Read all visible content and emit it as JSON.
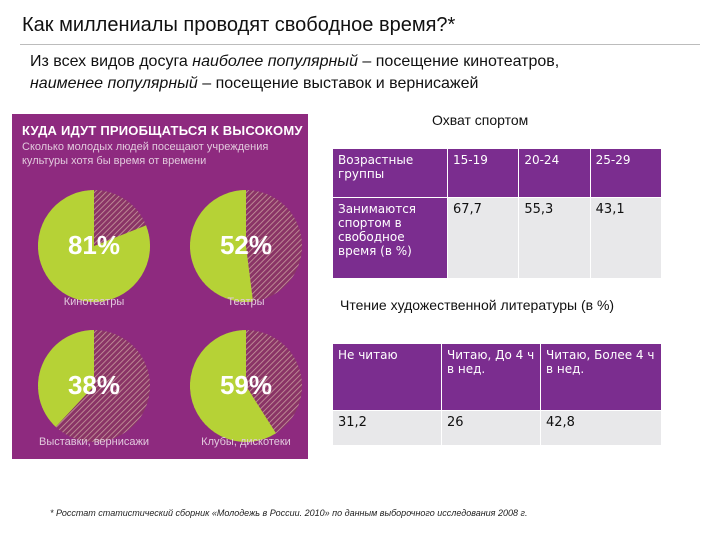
{
  "slide": {
    "title": "Как миллениалы проводят свободное время?*",
    "subtitle_lead": "Из всех видов досуга ",
    "subtitle_most": "наиболее популярный",
    "subtitle_mid": " – посещение кинотеатров,",
    "subtitle_least": "наименее популярный",
    "subtitle_end": " – посещение выставок и вернисажей",
    "footnote": "* Росстат статистический сборник «Молодежь в России. 2010» по данным выборочного исследования 2008 г."
  },
  "infographic": {
    "title": "КУДА ИДУТ ПРИОБЩАТЬСЯ К ВЫСОКОМУ",
    "subtitle": "Сколько молодых людей посещают учреждения культуры хотя бы время от времени",
    "colors": {
      "background": "#8e2a7f",
      "fill": "#b6d236",
      "rest": "#8a3466",
      "stripe": "#c79a9e"
    },
    "items": [
      {
        "value": 81,
        "label": "81%",
        "caption": "Кинотеатры"
      },
      {
        "value": 52,
        "label": "52%",
        "caption": "Театры"
      },
      {
        "value": 38,
        "label": "38%",
        "caption": "Выставки, вернисажи"
      },
      {
        "value": 59,
        "label": "59%",
        "caption": "Клубы, дискотеки"
      }
    ]
  },
  "sports": {
    "heading": "Охват спортом",
    "row_header_1": "Возрастные группы",
    "row_header_2": "Занимаются спортом в свободное время (в %)",
    "columns": [
      "15-19",
      "20-24",
      "25-29"
    ],
    "values": [
      "67,7",
      "55,3",
      "43,1"
    ]
  },
  "reading": {
    "heading": "Чтение художественной литературы (в %)",
    "headers": [
      "Не читаю",
      "Читаю, До 4 ч в нед.",
      "Читаю, Более 4 ч в нед."
    ],
    "values": [
      "31,2",
      "26",
      "42,8"
    ]
  }
}
